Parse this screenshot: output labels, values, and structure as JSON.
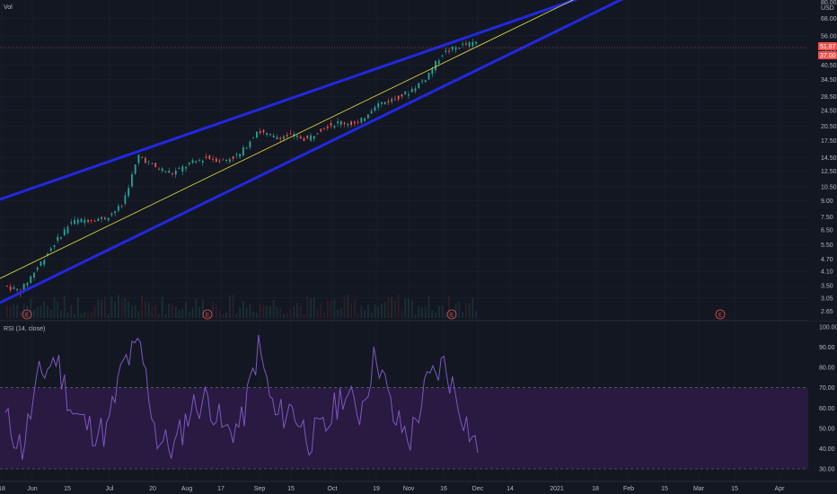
{
  "price_pane": {
    "indicator_label": "Vol",
    "axis_unit": "USD",
    "price_ticks": [
      "3.05",
      "3.50",
      "4.10",
      "4.70",
      "5.50",
      "6.50",
      "7.50",
      "9.00",
      "10.50",
      "12.50",
      "14.50",
      "17.50",
      "20.50",
      "24.50",
      "28.50",
      "34.50",
      "40.50",
      "48.50",
      "56.00",
      "68.00"
    ],
    "top_tick": "80.00",
    "bottom_tick": "2.65",
    "current_price_label": "51.87",
    "current_price_label_2": "37.00",
    "earnings_marker": "E"
  },
  "rsi_pane": {
    "label": "RSI (14, close)",
    "ticks": [
      "30.00",
      "40.00",
      "50.00",
      "60.00",
      "70.00",
      "80.00",
      "90.00",
      "100.00"
    ],
    "upper_band": 70,
    "lower_band": 30
  },
  "time_axis": {
    "labels": [
      "18",
      "Jun",
      "15",
      "Jul",
      "20",
      "Aug",
      "17",
      "Sep",
      "15",
      "Oct",
      "19",
      "Nov",
      "16",
      "Dec",
      "14",
      "2021",
      "18",
      "Feb",
      "15",
      "Mar",
      "15",
      "Apr"
    ]
  },
  "colors": {
    "background": "#131722",
    "channel": "#2128e0",
    "midline": "#e6e23a",
    "candle_up": "#26a69a",
    "candle_down": "#ef5350",
    "rsi_line": "#7e57c2",
    "rsi_band": "#2d1b45",
    "earnings": "#e05050",
    "grid": "#1f2430"
  },
  "chart_data": {
    "type": "line",
    "scale": "log",
    "series": [
      {
        "x": [
          "May 15",
          "May 22",
          "May 29",
          "Jun 5",
          "Jun 12",
          "Jun 19",
          "Jun 26",
          "Jul 3",
          "Jul 10",
          "Jul 17",
          "Jul 24",
          "Jul 31",
          "Aug 7",
          "Aug 14",
          "Aug 21",
          "Aug 28",
          "Sep 4",
          "Sep 11",
          "Sep 18",
          "Sep 25",
          "Oct 2",
          "Oct 9",
          "Oct 16",
          "Oct 23",
          "Oct 30",
          "Nov 6",
          "Nov 13",
          "Nov 20",
          "Nov 27"
        ],
        "values": [
          3.5,
          3.3,
          4.3,
          5.6,
          7.1,
          7.3,
          7.4,
          8.5,
          14.8,
          13.0,
          12.2,
          13.5,
          14.5,
          14.0,
          15.0,
          19.5,
          18.2,
          18.5,
          17.8,
          20.5,
          21.5,
          21.0,
          26.0,
          27.5,
          30.0,
          35.0,
          46.0,
          50.0,
          51.87
        ]
      },
      {
        "name": "RSI (14, close)",
        "x": [
          "May 15",
          "May 22",
          "May 29",
          "Jun 5",
          "Jun 12",
          "Jun 19",
          "Jun 26",
          "Jul 3",
          "Jul 10",
          "Jul 17",
          "Jul 24",
          "Jul 31",
          "Aug 7",
          "Aug 14",
          "Aug 21",
          "Aug 28",
          "Sep 4",
          "Sep 11",
          "Sep 18",
          "Sep 25",
          "Oct 2",
          "Oct 9",
          "Oct 16",
          "Oct 23",
          "Oct 30",
          "Nov 6",
          "Nov 13",
          "Nov 20",
          "Nov 27"
        ],
        "values": [
          55,
          40,
          75,
          85,
          58,
          50,
          48,
          82,
          90,
          45,
          40,
          60,
          65,
          48,
          52,
          90,
          55,
          60,
          45,
          50,
          68,
          58,
          88,
          55,
          45,
          72,
          82,
          60,
          38
        ]
      }
    ],
    "rsi_levels": [
      30,
      70
    ],
    "earnings_dates": [
      "May 15",
      "Aug 14",
      "Nov 13",
      "Feb 25"
    ]
  }
}
